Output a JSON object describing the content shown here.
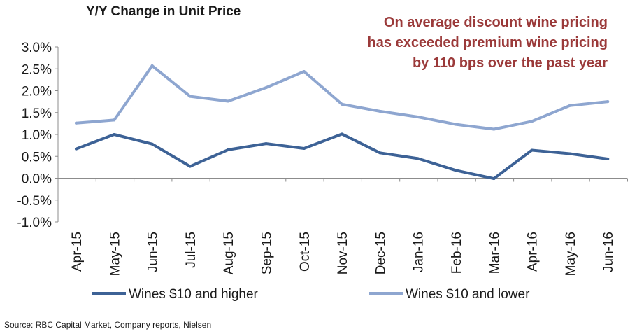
{
  "chart_data": {
    "type": "line",
    "title": "Y/Y Change in Unit Price",
    "annotation": "On average discount wine pricing has exceeded premium wine pricing by 110 bps over the past year",
    "source": "Source: RBC Capital Market, Company reports, Nielsen",
    "categories": [
      "Apr-15",
      "May-15",
      "Jun-15",
      "Jul-15",
      "Aug-15",
      "Sep-15",
      "Oct-15",
      "Nov-15",
      "Dec-15",
      "Jan-16",
      "Feb-16",
      "Mar-16",
      "Apr-16",
      "May-16",
      "Jun-16"
    ],
    "ylim": [
      -1.0,
      3.0
    ],
    "yticks": [
      "3.0%",
      "2.5%",
      "2.0%",
      "1.5%",
      "1.0%",
      "0.5%",
      "0.0%",
      "-0.5%",
      "-1.0%"
    ],
    "ytick_values": [
      3.0,
      2.5,
      2.0,
      1.5,
      1.0,
      0.5,
      0.0,
      -0.5,
      -1.0
    ],
    "grid": false,
    "legend_position": "bottom",
    "series": [
      {
        "name": "Wines $10 and higher",
        "color": "#3d6296",
        "values": [
          0.67,
          1.0,
          0.78,
          0.27,
          0.65,
          0.79,
          0.68,
          1.01,
          0.58,
          0.45,
          0.18,
          -0.01,
          0.64,
          0.56,
          0.44
        ]
      },
      {
        "name": "Wines $10 and lower",
        "color": "#8ea6d0",
        "values": [
          1.26,
          1.33,
          2.57,
          1.87,
          1.76,
          2.07,
          2.44,
          1.69,
          1.53,
          1.4,
          1.23,
          1.12,
          1.3,
          1.66,
          1.75
        ]
      }
    ]
  }
}
